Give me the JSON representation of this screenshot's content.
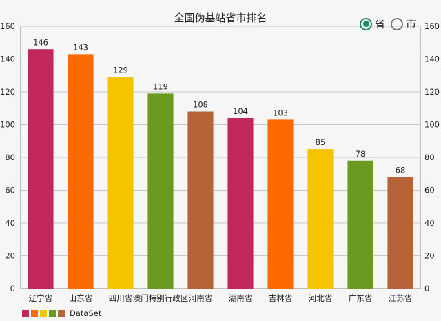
{
  "radio": {
    "options": [
      {
        "label": "省",
        "checked": true
      },
      {
        "label": "市",
        "checked": false
      }
    ],
    "accent": "#1c8a6a"
  },
  "chart_data": {
    "type": "bar",
    "title": "全国伪基站省市排名",
    "categories": [
      "辽宁省",
      "山东省",
      "四川省",
      "澳门特别行政区",
      "河南省",
      "湖南省",
      "吉林省",
      "河北省",
      "广东省",
      "江苏省"
    ],
    "values": [
      146,
      143,
      129,
      119,
      108,
      104,
      103,
      85,
      78,
      68
    ],
    "colors": [
      "#c2275a",
      "#ff6a00",
      "#f5c400",
      "#6b9a20",
      "#b5643a"
    ],
    "ylim": [
      0,
      160
    ],
    "yticks": [
      0,
      20,
      40,
      60,
      80,
      100,
      120,
      140,
      160
    ],
    "axes": "left and right",
    "grid": true,
    "legend": {
      "position": "bottom-left",
      "label": "DataSet"
    }
  }
}
